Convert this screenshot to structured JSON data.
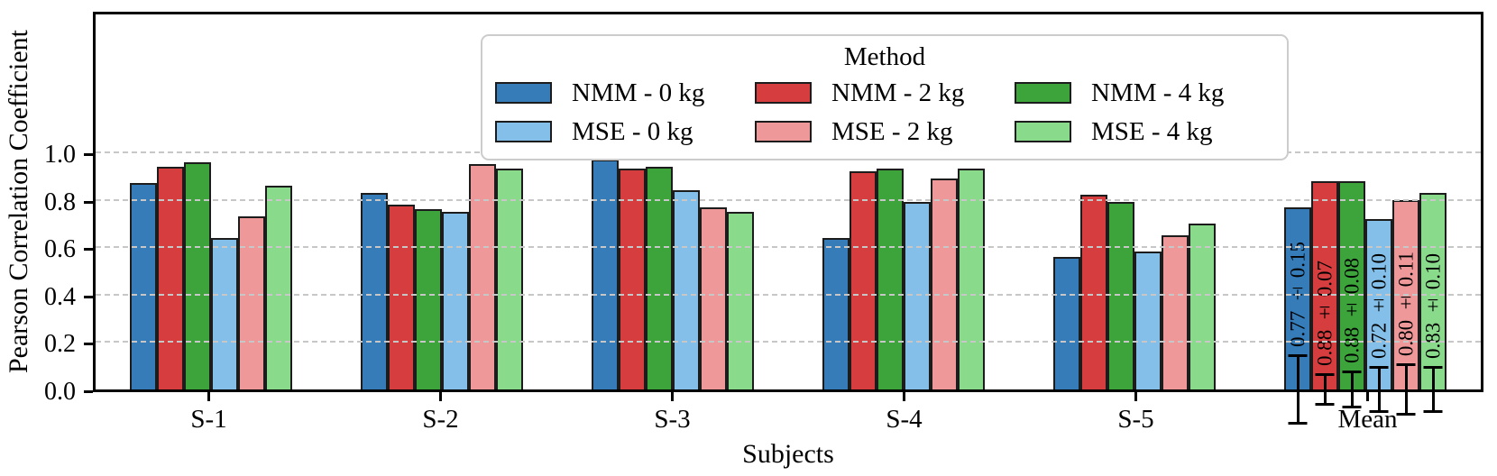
{
  "chart_data": {
    "type": "bar",
    "title": "",
    "xlabel": "Subjects",
    "ylabel": "Pearson Correlation Coefficient",
    "legend_title": "Method",
    "legend_position": "upper center, inside plot area",
    "grid": "horizontal dashed gray lines drawn over bars",
    "ylim": [
      0,
      1.6
    ],
    "yticks": [
      "0.0",
      "0.2",
      "0.4",
      "0.6",
      "0.8",
      "1.0"
    ],
    "categories": [
      "S-1",
      "S-2",
      "S-3",
      "S-4",
      "S-5",
      "Mean"
    ],
    "series": [
      {
        "name": "NMM - 0 kg",
        "color": "#357cb9",
        "values": [
          0.87,
          0.83,
          0.97,
          0.64,
          0.56,
          0.77
        ],
        "mean_error": 0.15,
        "mean_label": "0.77 ± 0.15"
      },
      {
        "name": "NMM - 2 kg",
        "color": "#d63d3e",
        "values": [
          0.94,
          0.78,
          0.93,
          0.92,
          0.82,
          0.88
        ],
        "mean_error": 0.07,
        "mean_label": "0.88 ± 0.07"
      },
      {
        "name": "NMM - 4 kg",
        "color": "#3da43c",
        "values": [
          0.96,
          0.76,
          0.94,
          0.93,
          0.79,
          0.88
        ],
        "mean_error": 0.08,
        "mean_label": "0.88 ± 0.08"
      },
      {
        "name": "MSE - 0 kg",
        "color": "#83bfe8",
        "values": [
          0.64,
          0.75,
          0.84,
          0.79,
          0.58,
          0.72
        ],
        "mean_error": 0.1,
        "mean_label": "0.72 ± 0.10"
      },
      {
        "name": "MSE - 2 kg",
        "color": "#ee989a",
        "values": [
          0.73,
          0.95,
          0.77,
          0.89,
          0.65,
          0.8
        ],
        "mean_error": 0.11,
        "mean_label": "0.80 ± 0.11"
      },
      {
        "name": "MSE - 4 kg",
        "color": "#8ada8c",
        "values": [
          0.86,
          0.93,
          0.75,
          0.93,
          0.7,
          0.83
        ],
        "mean_error": 0.1,
        "mean_label": "0.83 ± 0.10"
      }
    ],
    "error_bar_category": "Mean",
    "bar_edge_color": "#1c1c1c",
    "grid_color": "#c7c7c7",
    "spine_color": "#000000",
    "legend_border_color": "#cccccc"
  }
}
